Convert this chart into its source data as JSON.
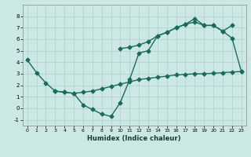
{
  "xlabel": "Humidex (Indice chaleur)",
  "bg_color": "#cce8e4",
  "line_color": "#1a6b5e",
  "grid_color": "#b0cfcb",
  "line1_x": [
    0,
    1,
    2,
    3,
    4,
    5,
    6,
    7,
    8,
    9,
    10,
    11,
    12,
    13,
    14,
    15,
    16,
    17,
    18,
    19,
    20,
    21,
    22,
    23
  ],
  "line1_y": [
    4.2,
    3.1,
    2.2,
    1.5,
    1.4,
    1.3,
    0.3,
    -0.1,
    -0.5,
    -0.7,
    0.5,
    2.5,
    4.8,
    5.0,
    6.3,
    6.6,
    7.0,
    7.3,
    7.8,
    7.2,
    7.2,
    6.7,
    6.1,
    3.2
  ],
  "line2_x": [
    3,
    4,
    5,
    6,
    7,
    8,
    9,
    10,
    11,
    12,
    13,
    14,
    15,
    16,
    17,
    18,
    19,
    20,
    21,
    22,
    23
  ],
  "line2_y": [
    1.5,
    1.4,
    1.3,
    1.4,
    1.5,
    1.7,
    1.9,
    2.1,
    2.3,
    2.5,
    2.6,
    2.7,
    2.8,
    2.9,
    2.95,
    3.0,
    3.0,
    3.05,
    3.1,
    3.15,
    3.2
  ],
  "line3_x": [
    10,
    11,
    12,
    13,
    14,
    15,
    16,
    17,
    18,
    19,
    20,
    21,
    22
  ],
  "line3_y": [
    5.2,
    5.3,
    5.5,
    5.8,
    6.3,
    6.6,
    7.0,
    7.3,
    7.5,
    7.2,
    7.2,
    6.7,
    7.2
  ],
  "ylim": [
    -1.5,
    9.0
  ],
  "xlim": [
    -0.5,
    23.5
  ],
  "yticks": [
    -1,
    0,
    1,
    2,
    3,
    4,
    5,
    6,
    7,
    8
  ],
  "xticks": [
    0,
    1,
    2,
    3,
    4,
    5,
    6,
    7,
    8,
    9,
    10,
    11,
    12,
    13,
    14,
    15,
    16,
    17,
    18,
    19,
    20,
    21,
    22,
    23
  ]
}
